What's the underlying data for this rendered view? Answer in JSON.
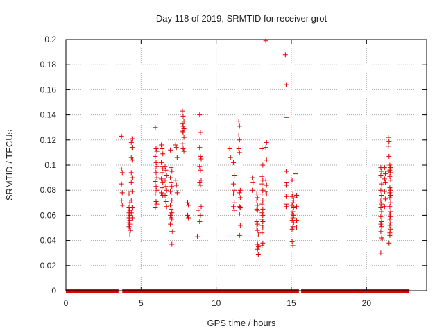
{
  "chart_data": {
    "type": "scatter",
    "title": "Day 118 of 2019, SRMTID for receiver grot",
    "xlabel": "GPS time / hours",
    "ylabel": "SRMTID / TECUs",
    "xlim": [
      0,
      24
    ],
    "ylim": [
      0,
      0.2
    ],
    "x_ticks": [
      0,
      5,
      10,
      15,
      20
    ],
    "y_ticks": [
      0,
      0.02,
      0.04,
      0.06,
      0.08,
      0.1,
      0.12,
      0.14,
      0.16,
      0.18,
      0.2
    ],
    "x_tick_labels": [
      "0",
      "5",
      "10",
      "15",
      "20"
    ],
    "y_tick_labels": [
      "0",
      "0.02",
      "0.04",
      "0.06",
      "0.08",
      "0.1",
      "0.12",
      "0.14",
      "0.16",
      "0.18",
      "0.2"
    ],
    "grid": true,
    "marker": "+",
    "marker_color": "#e00000",
    "zero_baseline": {
      "y": 0,
      "segments": [
        [
          0.0,
          3.5
        ],
        [
          3.75,
          15.5
        ],
        [
          15.65,
          22.85
        ]
      ]
    },
    "series": [
      {
        "points": [
          [
            3.7,
            0.123
          ],
          [
            3.7,
            0.097
          ],
          [
            3.75,
            0.094
          ],
          [
            3.7,
            0.085
          ],
          [
            3.75,
            0.078
          ],
          [
            3.7,
            0.072
          ],
          [
            3.75,
            0.068
          ],
          [
            4.2,
            0.077
          ],
          [
            4.25,
            0.07
          ],
          [
            4.2,
            0.066
          ],
          [
            4.25,
            0.064
          ],
          [
            4.2,
            0.062
          ],
          [
            4.25,
            0.06
          ],
          [
            4.2,
            0.058
          ],
          [
            4.25,
            0.056
          ],
          [
            4.2,
            0.054
          ],
          [
            4.25,
            0.053
          ],
          [
            4.2,
            0.051
          ],
          [
            4.25,
            0.05
          ],
          [
            4.3,
            0.048
          ],
          [
            4.25,
            0.045
          ],
          [
            4.4,
            0.121
          ],
          [
            4.35,
            0.118
          ],
          [
            4.4,
            0.114
          ],
          [
            4.35,
            0.106
          ],
          [
            4.4,
            0.104
          ],
          [
            4.35,
            0.094
          ],
          [
            4.4,
            0.09
          ],
          [
            4.35,
            0.086
          ],
          [
            4.4,
            0.079
          ],
          [
            4.35,
            0.072
          ],
          [
            4.4,
            0.066
          ],
          [
            4.35,
            0.062
          ],
          [
            4.4,
            0.058
          ],
          [
            5.95,
            0.13
          ],
          [
            6.0,
            0.113
          ],
          [
            6.05,
            0.111
          ],
          [
            5.95,
            0.107
          ],
          [
            6.0,
            0.102
          ],
          [
            6.05,
            0.099
          ],
          [
            5.95,
            0.097
          ],
          [
            6.0,
            0.094
          ],
          [
            6.05,
            0.09
          ],
          [
            5.95,
            0.087
          ],
          [
            6.0,
            0.083
          ],
          [
            6.05,
            0.08
          ],
          [
            5.95,
            0.077
          ],
          [
            6.0,
            0.071
          ],
          [
            6.05,
            0.069
          ],
          [
            5.95,
            0.066
          ],
          [
            6.35,
            0.116
          ],
          [
            6.4,
            0.113
          ],
          [
            6.45,
            0.109
          ],
          [
            6.35,
            0.102
          ],
          [
            6.4,
            0.099
          ],
          [
            6.45,
            0.097
          ],
          [
            6.4,
            0.094
          ],
          [
            6.35,
            0.089
          ],
          [
            6.45,
            0.086
          ],
          [
            6.4,
            0.082
          ],
          [
            6.35,
            0.078
          ],
          [
            6.45,
            0.076
          ],
          [
            6.6,
            0.099
          ],
          [
            6.65,
            0.096
          ],
          [
            6.7,
            0.092
          ],
          [
            6.6,
            0.088
          ],
          [
            6.65,
            0.083
          ],
          [
            6.7,
            0.08
          ],
          [
            6.6,
            0.076
          ],
          [
            6.65,
            0.071
          ],
          [
            6.7,
            0.067
          ],
          [
            6.95,
            0.112
          ],
          [
            7.0,
            0.098
          ],
          [
            7.05,
            0.095
          ],
          [
            6.95,
            0.09
          ],
          [
            7.0,
            0.086
          ],
          [
            7.05,
            0.083
          ],
          [
            6.95,
            0.079
          ],
          [
            7.0,
            0.077
          ],
          [
            7.05,
            0.072
          ],
          [
            6.95,
            0.068
          ],
          [
            7.0,
            0.065
          ],
          [
            7.05,
            0.062
          ],
          [
            6.95,
            0.06
          ],
          [
            7.0,
            0.058
          ],
          [
            7.05,
            0.057
          ],
          [
            6.95,
            0.053
          ],
          [
            7.0,
            0.047
          ],
          [
            7.1,
            0.047
          ],
          [
            7.05,
            0.037
          ],
          [
            7.3,
            0.116
          ],
          [
            7.35,
            0.114
          ],
          [
            7.4,
            0.106
          ],
          [
            7.3,
            0.088
          ],
          [
            7.35,
            0.084
          ],
          [
            7.4,
            0.078
          ],
          [
            7.75,
            0.143
          ],
          [
            7.8,
            0.139
          ],
          [
            7.85,
            0.135
          ],
          [
            7.75,
            0.133
          ],
          [
            7.8,
            0.131
          ],
          [
            7.85,
            0.129
          ],
          [
            7.75,
            0.127
          ],
          [
            7.8,
            0.126
          ],
          [
            7.85,
            0.122
          ],
          [
            7.75,
            0.117
          ],
          [
            7.8,
            0.113
          ],
          [
            7.85,
            0.111
          ],
          [
            8.1,
            0.07
          ],
          [
            8.15,
            0.068
          ],
          [
            8.1,
            0.06
          ],
          [
            8.15,
            0.058
          ],
          [
            8.8,
            0.064
          ],
          [
            8.75,
            0.043
          ],
          [
            8.9,
            0.14
          ],
          [
            8.95,
            0.126
          ],
          [
            8.9,
            0.114
          ],
          [
            8.95,
            0.107
          ],
          [
            9.0,
            0.105
          ],
          [
            8.9,
            0.099
          ],
          [
            8.95,
            0.096
          ],
          [
            9.0,
            0.088
          ],
          [
            8.9,
            0.086
          ],
          [
            8.95,
            0.084
          ],
          [
            9.0,
            0.067
          ],
          [
            8.95,
            0.06
          ],
          [
            8.9,
            0.055
          ],
          [
            10.9,
            0.113
          ],
          [
            10.95,
            0.106
          ],
          [
            11.15,
            0.102
          ],
          [
            11.2,
            0.092
          ],
          [
            11.15,
            0.085
          ],
          [
            11.2,
            0.08
          ],
          [
            11.15,
            0.077
          ],
          [
            11.2,
            0.07
          ],
          [
            11.15,
            0.067
          ],
          [
            11.2,
            0.064
          ],
          [
            11.5,
            0.135
          ],
          [
            11.55,
            0.131
          ],
          [
            11.5,
            0.124
          ],
          [
            11.55,
            0.12
          ],
          [
            11.5,
            0.113
          ],
          [
            11.55,
            0.11
          ],
          [
            11.6,
            0.08
          ],
          [
            11.55,
            0.078
          ],
          [
            11.6,
            0.074
          ],
          [
            11.55,
            0.067
          ],
          [
            11.6,
            0.066
          ],
          [
            11.55,
            0.061
          ],
          [
            11.6,
            0.052
          ],
          [
            11.55,
            0.044
          ],
          [
            12.4,
            0.09
          ],
          [
            12.45,
            0.086
          ],
          [
            12.4,
            0.08
          ],
          [
            12.7,
            0.077
          ],
          [
            12.75,
            0.074
          ],
          [
            12.7,
            0.072
          ],
          [
            12.75,
            0.068
          ],
          [
            12.7,
            0.065
          ],
          [
            12.75,
            0.064
          ],
          [
            12.7,
            0.055
          ],
          [
            12.75,
            0.053
          ],
          [
            12.7,
            0.05
          ],
          [
            12.75,
            0.048
          ],
          [
            12.8,
            0.045
          ],
          [
            12.75,
            0.037
          ],
          [
            12.8,
            0.035
          ],
          [
            12.75,
            0.033
          ],
          [
            12.8,
            0.029
          ],
          [
            13.05,
            0.113
          ],
          [
            13.1,
            0.1
          ],
          [
            13.05,
            0.091
          ],
          [
            13.1,
            0.088
          ],
          [
            13.05,
            0.085
          ],
          [
            13.1,
            0.08
          ],
          [
            13.05,
            0.077
          ],
          [
            13.1,
            0.072
          ],
          [
            13.05,
            0.069
          ],
          [
            13.1,
            0.065
          ],
          [
            13.05,
            0.062
          ],
          [
            13.1,
            0.06
          ],
          [
            13.05,
            0.057
          ],
          [
            13.1,
            0.055
          ],
          [
            13.05,
            0.052
          ],
          [
            13.1,
            0.05
          ],
          [
            13.05,
            0.046
          ],
          [
            13.1,
            0.038
          ],
          [
            13.05,
            0.036
          ],
          [
            13.3,
            0.199
          ],
          [
            13.35,
            0.118
          ],
          [
            13.3,
            0.114
          ],
          [
            13.35,
            0.104
          ],
          [
            13.3,
            0.088
          ],
          [
            13.35,
            0.084
          ],
          [
            13.3,
            0.079
          ],
          [
            13.35,
            0.077
          ],
          [
            14.6,
            0.188
          ],
          [
            14.65,
            0.164
          ],
          [
            14.7,
            0.138
          ],
          [
            14.65,
            0.095
          ],
          [
            14.7,
            0.086
          ],
          [
            14.65,
            0.084
          ],
          [
            14.7,
            0.077
          ],
          [
            14.65,
            0.075
          ],
          [
            14.7,
            0.069
          ],
          [
            14.65,
            0.067
          ],
          [
            15.05,
            0.088
          ],
          [
            15.1,
            0.077
          ],
          [
            15.05,
            0.075
          ],
          [
            15.15,
            0.072
          ],
          [
            15.1,
            0.07
          ],
          [
            15.05,
            0.068
          ],
          [
            15.15,
            0.066
          ],
          [
            15.1,
            0.063
          ],
          [
            15.05,
            0.061
          ],
          [
            15.15,
            0.06
          ],
          [
            15.1,
            0.058
          ],
          [
            15.05,
            0.056
          ],
          [
            15.15,
            0.054
          ],
          [
            15.1,
            0.051
          ],
          [
            15.05,
            0.049
          ],
          [
            15.05,
            0.039
          ],
          [
            15.1,
            0.036
          ],
          [
            15.3,
            0.093
          ],
          [
            15.35,
            0.076
          ],
          [
            15.3,
            0.074
          ],
          [
            15.35,
            0.067
          ],
          [
            15.3,
            0.061
          ],
          [
            15.35,
            0.056
          ],
          [
            15.3,
            0.054
          ],
          [
            15.35,
            0.05
          ],
          [
            20.95,
            0.098
          ],
          [
            21.0,
            0.095
          ],
          [
            20.95,
            0.092
          ],
          [
            21.0,
            0.085
          ],
          [
            20.95,
            0.08
          ],
          [
            21.0,
            0.076
          ],
          [
            20.95,
            0.072
          ],
          [
            21.0,
            0.069
          ],
          [
            20.95,
            0.066
          ],
          [
            21.0,
            0.063
          ],
          [
            20.95,
            0.059
          ],
          [
            21.0,
            0.055
          ],
          [
            20.95,
            0.053
          ],
          [
            21.0,
            0.051
          ],
          [
            20.95,
            0.047
          ],
          [
            21.0,
            0.042
          ],
          [
            21.05,
            0.041
          ],
          [
            20.95,
            0.03
          ],
          [
            21.2,
            0.098
          ],
          [
            21.25,
            0.093
          ],
          [
            21.2,
            0.089
          ],
          [
            21.25,
            0.086
          ],
          [
            21.2,
            0.079
          ],
          [
            21.25,
            0.073
          ],
          [
            21.2,
            0.067
          ],
          [
            21.45,
            0.122
          ],
          [
            21.5,
            0.119
          ],
          [
            21.45,
            0.115
          ],
          [
            21.5,
            0.107
          ],
          [
            21.45,
            0.095
          ],
          [
            21.55,
            0.1
          ],
          [
            21.6,
            0.098
          ],
          [
            21.55,
            0.096
          ],
          [
            21.6,
            0.094
          ],
          [
            21.55,
            0.091
          ],
          [
            21.6,
            0.088
          ],
          [
            21.55,
            0.082
          ],
          [
            21.6,
            0.08
          ],
          [
            21.55,
            0.078
          ],
          [
            21.6,
            0.076
          ],
          [
            21.55,
            0.074
          ],
          [
            21.6,
            0.07
          ],
          [
            21.55,
            0.067
          ],
          [
            21.6,
            0.063
          ],
          [
            21.55,
            0.061
          ],
          [
            21.6,
            0.059
          ],
          [
            21.55,
            0.057
          ],
          [
            21.6,
            0.054
          ],
          [
            21.55,
            0.052
          ],
          [
            21.6,
            0.049
          ],
          [
            21.55,
            0.046
          ],
          [
            21.5,
            0.038
          ],
          [
            21.55,
            0.044
          ]
        ]
      }
    ]
  }
}
